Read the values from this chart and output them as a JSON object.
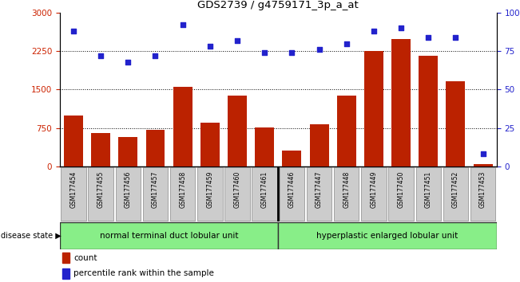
{
  "title": "GDS2739 / g4759171_3p_a_at",
  "categories": [
    "GSM177454",
    "GSM177455",
    "GSM177456",
    "GSM177457",
    "GSM177458",
    "GSM177459",
    "GSM177460",
    "GSM177461",
    "GSM177446",
    "GSM177447",
    "GSM177448",
    "GSM177449",
    "GSM177450",
    "GSM177451",
    "GSM177452",
    "GSM177453"
  ],
  "counts": [
    1000,
    650,
    570,
    710,
    1560,
    860,
    1380,
    760,
    310,
    820,
    1380,
    2260,
    2480,
    2160,
    1660,
    50
  ],
  "percentiles": [
    88,
    72,
    68,
    72,
    92,
    78,
    82,
    74,
    74,
    76,
    80,
    88,
    90,
    84,
    84,
    8
  ],
  "group1_label": "normal terminal duct lobular unit",
  "group2_label": "hyperplastic enlarged lobular unit",
  "group1_count": 8,
  "group2_count": 8,
  "bar_color": "#bb2200",
  "dot_color": "#2222cc",
  "ylim_left": [
    0,
    3000
  ],
  "ylim_right": [
    0,
    100
  ],
  "yticks_left": [
    0,
    750,
    1500,
    2250,
    3000
  ],
  "yticks_right": [
    0,
    25,
    50,
    75,
    100
  ],
  "grid_lines": [
    750,
    1500,
    2250
  ],
  "tick_label_color_left": "#cc2200",
  "tick_label_color_right": "#2222cc",
  "legend_count_label": "count",
  "legend_percentile_label": "percentile rank within the sample",
  "group_bg_color": "#88ee88",
  "xtick_bg_color": "#cccccc",
  "disease_state_label": "disease state ▶"
}
